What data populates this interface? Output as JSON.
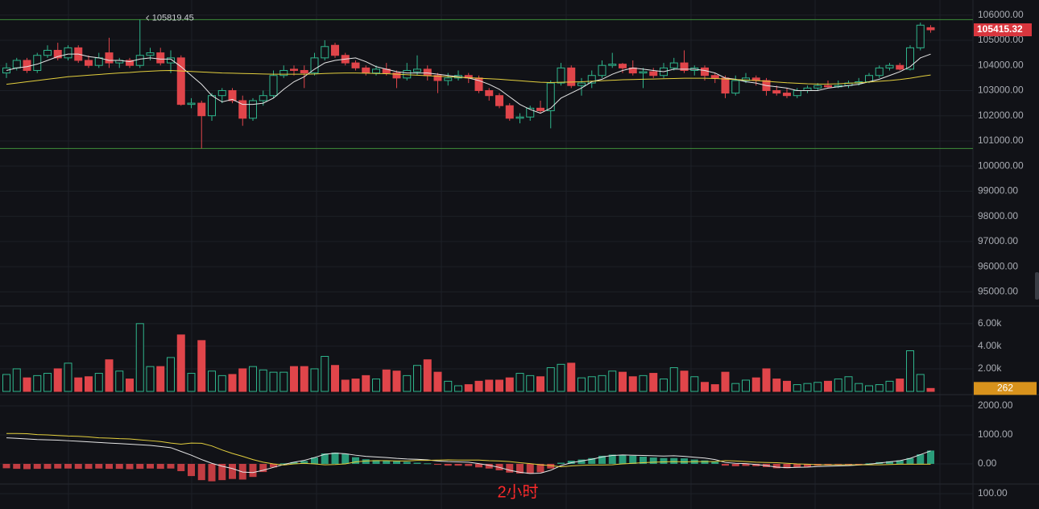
{
  "chart_data": {
    "type": "candlestick",
    "ylim": [
      94500,
      106600
    ],
    "yticks": [
      {
        "value": 95000,
        "label": "95000.00"
      },
      {
        "value": 96000,
        "label": "96000.00"
      },
      {
        "value": 97000,
        "label": "97000.00"
      },
      {
        "value": 98000,
        "label": "98000.00"
      },
      {
        "value": 99000,
        "label": "99000.00"
      },
      {
        "value": 100000,
        "label": "100000.00"
      },
      {
        "value": 101000,
        "label": "101000.00"
      },
      {
        "value": 102000,
        "label": "102000.00"
      },
      {
        "value": 103000,
        "label": "103000.00"
      },
      {
        "value": 104000,
        "label": "104000.00"
      },
      {
        "value": 105000,
        "label": "105000.00"
      },
      {
        "value": 106000,
        "label": "106000.00"
      }
    ],
    "grid": true,
    "up_color": "#2fb58c",
    "down_color": "#e0454a",
    "up_hollow": true,
    "level_color": "#3f8f3a",
    "last_color": "#d9363e",
    "candles": [
      [
        103700,
        104100,
        103500,
        103900
      ],
      [
        103900,
        104300,
        103800,
        104200
      ],
      [
        104200,
        104300,
        103700,
        103800
      ],
      [
        103800,
        104500,
        103700,
        104400
      ],
      [
        104400,
        104800,
        104300,
        104600
      ],
      [
        104600,
        104900,
        104200,
        104300
      ],
      [
        104300,
        104800,
        104200,
        104700
      ],
      [
        104700,
        104800,
        104100,
        104200
      ],
      [
        104200,
        104400,
        103900,
        104000
      ],
      [
        104000,
        104500,
        103900,
        104300
      ],
      [
        104500,
        105100,
        103900,
        104100
      ],
      [
        104100,
        104300,
        103900,
        104200
      ],
      [
        104200,
        104300,
        103900,
        104000
      ],
      [
        104000,
        105819.45,
        103900,
        104400
      ],
      [
        104400,
        104700,
        104200,
        104500
      ],
      [
        104500,
        104700,
        104000,
        104100
      ],
      [
        104100,
        104600,
        103700,
        104300
      ],
      [
        104300,
        104400,
        102400,
        102450
      ],
      [
        102450,
        102700,
        102300,
        102500
      ],
      [
        102500,
        102600,
        100700,
        102000
      ],
      [
        102000,
        102900,
        101800,
        102800
      ],
      [
        102800,
        103100,
        102500,
        103000
      ],
      [
        103000,
        103100,
        102500,
        102600
      ],
      [
        102600,
        102800,
        101600,
        101900
      ],
      [
        101900,
        102700,
        101800,
        102600
      ],
      [
        102600,
        103000,
        102400,
        102800
      ],
      [
        102800,
        103800,
        102700,
        103600
      ],
      [
        103600,
        104000,
        103500,
        103800
      ],
      [
        103850,
        104000,
        103600,
        103800
      ],
      [
        103800,
        104000,
        103100,
        103700
      ],
      [
        103700,
        104500,
        103600,
        104300
      ],
      [
        104300,
        105000,
        104200,
        104750
      ],
      [
        104800,
        104900,
        104300,
        104400
      ],
      [
        104400,
        104500,
        104000,
        104100
      ],
      [
        104100,
        104200,
        103800,
        103900
      ],
      [
        103900,
        104000,
        103600,
        103700
      ],
      [
        103700,
        104000,
        103600,
        103850
      ],
      [
        103850,
        104100,
        103600,
        103700
      ],
      [
        103700,
        103800,
        103100,
        103500
      ],
      [
        103500,
        104100,
        103400,
        103800
      ],
      [
        103750,
        104400,
        103600,
        103850
      ],
      [
        103850,
        104000,
        103400,
        103600
      ],
      [
        103600,
        103700,
        102900,
        103400
      ],
      [
        103400,
        103700,
        103200,
        103500
      ],
      [
        103500,
        103800,
        103400,
        103600
      ],
      [
        103600,
        103700,
        103300,
        103500
      ],
      [
        103500,
        103600,
        102900,
        103000
      ],
      [
        103000,
        103100,
        102600,
        102800
      ],
      [
        102800,
        102900,
        102300,
        102400
      ],
      [
        102400,
        102500,
        101800,
        101900
      ],
      [
        101900,
        102100,
        101700,
        101950
      ],
      [
        101950,
        102400,
        101800,
        102300
      ],
      [
        102300,
        102600,
        102100,
        102200
      ],
      [
        102200,
        103400,
        101500,
        103300
      ],
      [
        103300,
        104100,
        103200,
        103900
      ],
      [
        103900,
        104000,
        103100,
        103200
      ],
      [
        103200,
        103500,
        102800,
        103300
      ],
      [
        103300,
        103800,
        103100,
        103600
      ],
      [
        103600,
        104200,
        103500,
        104000
      ],
      [
        104000,
        104500,
        103900,
        104050
      ],
      [
        104050,
        104100,
        103700,
        103900
      ],
      [
        103900,
        104200,
        103600,
        103700
      ],
      [
        103700,
        103900,
        103100,
        103750
      ],
      [
        103750,
        103900,
        103500,
        103600
      ],
      [
        103600,
        104100,
        103500,
        103900
      ],
      [
        103900,
        104300,
        103800,
        104100
      ],
      [
        104100,
        104600,
        103700,
        103800
      ],
      [
        103800,
        104000,
        103600,
        103900
      ],
      [
        103900,
        104000,
        103400,
        103600
      ],
      [
        103600,
        103700,
        103300,
        103500
      ],
      [
        103500,
        103600,
        102700,
        102900
      ],
      [
        102900,
        103600,
        102800,
        103400
      ],
      [
        103400,
        103700,
        103300,
        103500
      ],
      [
        103500,
        103600,
        103200,
        103400
      ],
      [
        103400,
        103500,
        102800,
        103000
      ],
      [
        103000,
        103200,
        102800,
        102900
      ],
      [
        102900,
        103100,
        102700,
        102800
      ],
      [
        102800,
        103100,
        102700,
        103000
      ],
      [
        103000,
        103200,
        102900,
        103100
      ],
      [
        103100,
        103300,
        103000,
        103200
      ],
      [
        103200,
        103400,
        103100,
        103150
      ],
      [
        103150,
        103400,
        103100,
        103200
      ],
      [
        103200,
        103400,
        103100,
        103300
      ],
      [
        103300,
        103500,
        103200,
        103350
      ],
      [
        103350,
        103700,
        103300,
        103600
      ],
      [
        103600,
        104000,
        103500,
        103900
      ],
      [
        103900,
        104100,
        103800,
        104000
      ],
      [
        104000,
        104100,
        103800,
        103850
      ],
      [
        103850,
        104800,
        103800,
        104700
      ],
      [
        104700,
        105700,
        104600,
        105600
      ],
      [
        105500,
        105600,
        105300,
        105415.32
      ]
    ],
    "lines": [
      {
        "color": "#e6e6e6",
        "values": [
          103800,
          103900,
          103950,
          104050,
          104200,
          104350,
          104450,
          104450,
          104350,
          104300,
          104200,
          104200,
          104150,
          104250,
          104300,
          104250,
          104250,
          103950,
          103600,
          103250,
          102800,
          102550,
          102650,
          102450,
          102450,
          102500,
          102700,
          103050,
          103350,
          103550,
          103850,
          104100,
          104200,
          104250,
          104300,
          104150,
          103950,
          103850,
          103750,
          103700,
          103700,
          103700,
          103650,
          103600,
          103550,
          103500,
          103400,
          103250,
          103050,
          102750,
          102450,
          102250,
          102100,
          102300,
          102700,
          102900,
          103100,
          103350,
          103450,
          103650,
          103800,
          103900,
          103850,
          103800,
          103750,
          103850,
          103850,
          103850,
          103800,
          103700,
          103500,
          103450,
          103350,
          103300,
          103200,
          103150,
          103100,
          103000,
          103000,
          103000,
          103100,
          103150,
          103200,
          103250,
          103350,
          103450,
          103600,
          103750,
          103950,
          104300,
          104450
        ]
      },
      {
        "color": "#e3cf3e",
        "values": [
          103250,
          103300,
          103350,
          103400,
          103450,
          103500,
          103550,
          103580,
          103610,
          103640,
          103670,
          103700,
          103720,
          103750,
          103770,
          103790,
          103800,
          103780,
          103760,
          103740,
          103720,
          103700,
          103690,
          103680,
          103670,
          103660,
          103650,
          103650,
          103650,
          103650,
          103660,
          103680,
          103690,
          103700,
          103700,
          103690,
          103680,
          103670,
          103650,
          103630,
          103610,
          103590,
          103570,
          103550,
          103530,
          103510,
          103490,
          103470,
          103450,
          103420,
          103390,
          103360,
          103330,
          103320,
          103330,
          103340,
          103350,
          103370,
          103390,
          103410,
          103430,
          103440,
          103450,
          103460,
          103470,
          103480,
          103490,
          103490,
          103490,
          103480,
          103460,
          103440,
          103420,
          103400,
          103370,
          103340,
          103310,
          103290,
          103270,
          103260,
          103260,
          103270,
          103290,
          103310,
          103340,
          103370,
          103400,
          103440,
          103490,
          103560,
          103620
        ]
      }
    ],
    "volume": {
      "type": "bar",
      "ylim": [
        0,
        6700
      ],
      "yticks": [
        {
          "value": 2000,
          "label": "2.00k"
        },
        {
          "value": 4000,
          "label": "4.00k"
        },
        {
          "value": 6000,
          "label": "6.00k"
        }
      ],
      "label_color": "#d8921c",
      "values": [
        1500,
        2000,
        1200,
        1400,
        1600,
        2000,
        2500,
        1200,
        1300,
        1600,
        2800,
        1800,
        1100,
        6000,
        2200,
        2200,
        3000,
        5000,
        1600,
        4500,
        1800,
        1400,
        1500,
        2000,
        2200,
        1900,
        1700,
        1700,
        2200,
        2200,
        2000,
        3100,
        2300,
        1000,
        1100,
        1400,
        1100,
        1900,
        1800,
        1400,
        2300,
        2800,
        1700,
        900,
        500,
        600,
        900,
        1000,
        1000,
        1200,
        1600,
        1400,
        1300,
        2100,
        2400,
        2500,
        1200,
        1300,
        1400,
        1800,
        1700,
        1300,
        1400,
        1600,
        1100,
        2100,
        1800,
        1300,
        800,
        600,
        1700,
        700,
        1000,
        1200,
        2000,
        1100,
        900,
        600,
        700,
        800,
        900,
        1100,
        1300,
        700,
        500,
        600,
        900,
        1100,
        3600,
        1500,
        262
      ]
    },
    "macd": {
      "type": "bar",
      "ylim": [
        -667,
        2333
      ],
      "yticks": [
        {
          "value": 0,
          "label": "0.00"
        },
        {
          "value": 1000,
          "label": "1000.00"
        },
        {
          "value": 2000,
          "label": "2000.00"
        }
      ],
      "values": [
        -150,
        -170,
        -180,
        -170,
        -170,
        -160,
        -160,
        -170,
        -170,
        -160,
        -170,
        -170,
        -180,
        -170,
        -160,
        -170,
        -160,
        -250,
        -420,
        -560,
        -600,
        -560,
        -520,
        -540,
        -450,
        -280,
        -120,
        20,
        60,
        100,
        220,
        360,
        390,
        350,
        230,
        160,
        130,
        110,
        90,
        70,
        40,
        20,
        -30,
        -60,
        -60,
        -70,
        -120,
        -160,
        -220,
        -300,
        -330,
        -340,
        -290,
        -160,
        40,
        110,
        150,
        200,
        280,
        320,
        310,
        280,
        250,
        220,
        200,
        200,
        190,
        150,
        120,
        70,
        -60,
        -80,
        -70,
        -80,
        -110,
        -150,
        -150,
        -120,
        -100,
        -60,
        -50,
        -40,
        -30,
        -10,
        20,
        60,
        90,
        120,
        200,
        330,
        460
      ],
      "lines": [
        {
          "color": "#e6e6e6",
          "values": [
            900,
            880,
            860,
            840,
            830,
            820,
            800,
            780,
            760,
            740,
            720,
            700,
            680,
            660,
            640,
            600,
            560,
            430,
            300,
            150,
            20,
            -80,
            -160,
            -280,
            -300,
            -220,
            -120,
            -20,
            60,
            120,
            220,
            330,
            370,
            350,
            300,
            260,
            240,
            220,
            190,
            170,
            160,
            140,
            100,
            80,
            70,
            60,
            10,
            -50,
            -120,
            -220,
            -290,
            -330,
            -320,
            -220,
            -60,
            40,
            100,
            160,
            240,
            290,
            310,
            300,
            290,
            280,
            270,
            280,
            260,
            230,
            200,
            150,
            50,
            20,
            10,
            -20,
            -60,
            -110,
            -130,
            -120,
            -110,
            -90,
            -80,
            -70,
            -60,
            -40,
            -10,
            30,
            70,
            110,
            190,
            320,
            450
          ]
        },
        {
          "color": "#e3cf3e",
          "values": [
            1050,
            1050,
            1040,
            1010,
            1000,
            980,
            960,
            950,
            930,
            900,
            890,
            870,
            860,
            830,
            800,
            770,
            720,
            680,
            720,
            710,
            620,
            480,
            360,
            260,
            150,
            60,
            0,
            -40,
            0,
            20,
            0,
            -30,
            -20,
            0,
            70,
            100,
            110,
            110,
            100,
            100,
            120,
            120,
            130,
            140,
            130,
            130,
            130,
            110,
            100,
            80,
            40,
            10,
            -30,
            -60,
            -100,
            -70,
            -50,
            -40,
            -40,
            -30,
            0,
            20,
            40,
            60,
            70,
            80,
            70,
            80,
            80,
            80,
            110,
            100,
            80,
            60,
            50,
            40,
            20,
            0,
            -10,
            -30,
            -30,
            -30,
            -30,
            -30,
            -30,
            -30,
            -20,
            -10,
            -10,
            -10,
            -10
          ]
        }
      ]
    },
    "indicator": {
      "ylim": [
        0,
        158
      ],
      "yticks": [
        {
          "value": 100,
          "label": "100.00"
        }
      ]
    },
    "caption": "2小时",
    "caption_color": "#ff2a2a"
  }
}
